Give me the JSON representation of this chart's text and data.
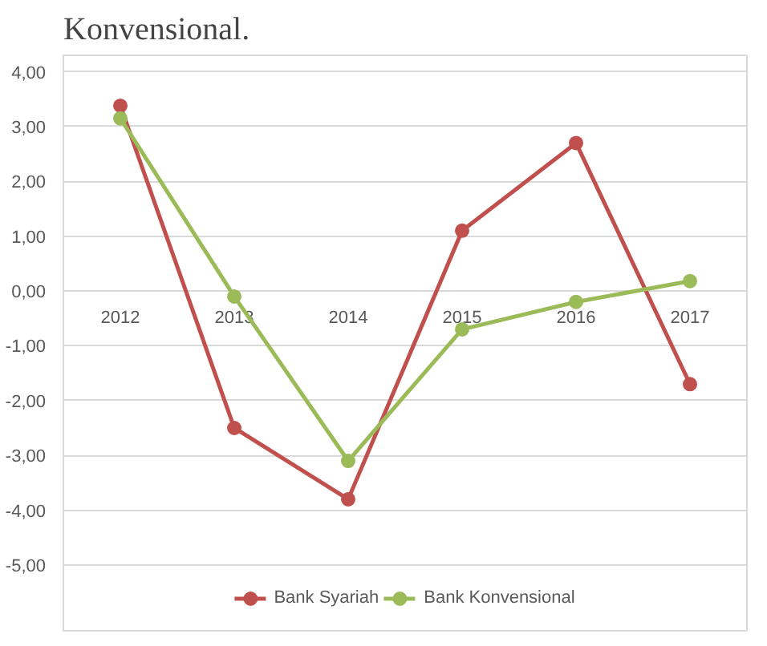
{
  "chart_data": {
    "type": "line",
    "title": "Konvensional.",
    "categories": [
      "2012",
      "2013",
      "2014",
      "2015",
      "2016",
      "2017"
    ],
    "series": [
      {
        "name": "Bank Syariah",
        "color": "#c0504d",
        "values": [
          3.38,
          -2.5,
          -3.8,
          1.1,
          2.7,
          -1.7
        ]
      },
      {
        "name": "Bank Konvensional",
        "color": "#9bbb59",
        "values": [
          3.15,
          -0.1,
          -3.1,
          -0.7,
          -0.2,
          0.18
        ]
      }
    ],
    "ylim": [
      -6.2,
      4.3
    ],
    "yticks": [
      {
        "value": 4,
        "label": "4,00"
      },
      {
        "value": 3,
        "label": "3,00"
      },
      {
        "value": 2,
        "label": "2,00"
      },
      {
        "value": 1,
        "label": "1,00"
      },
      {
        "value": 0,
        "label": "0,00"
      },
      {
        "value": -1,
        "label": "-1,00"
      },
      {
        "value": -2,
        "label": "-2,00"
      },
      {
        "value": -3,
        "label": "-3,00"
      },
      {
        "value": -4,
        "label": "-4,00"
      },
      {
        "value": -5,
        "label": "-5,00"
      }
    ],
    "grid": "y",
    "legend": "bottom",
    "marker": "circle",
    "line_style": "solid"
  }
}
